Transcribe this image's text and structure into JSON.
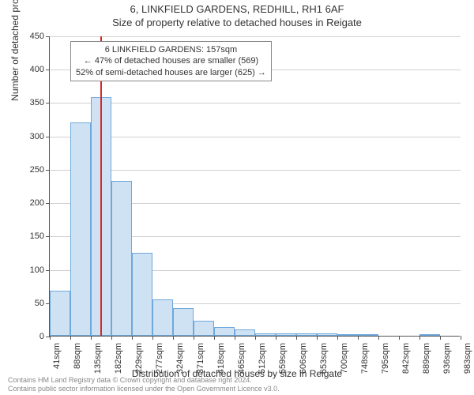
{
  "title": "6, LINKFIELD GARDENS, REDHILL, RH1 6AF",
  "subtitle": "Size of property relative to detached houses in Reigate",
  "y_axis_label": "Number of detached properties",
  "x_axis_label": "Distribution of detached houses by size in Reigate",
  "footer_line1": "Contains HM Land Registry data © Crown copyright and database right 2024.",
  "footer_line2": "Contains public sector information licensed under the Open Government Licence v3.0.",
  "chart": {
    "type": "histogram",
    "background_color": "#ffffff",
    "bar_fill": "#cfe2f3",
    "bar_border": "#6fa8dc",
    "grid_color": "#555555",
    "grid_opacity": 0.28,
    "axis_color": "#555555",
    "ref_line_color": "#d62728",
    "ref_line_x_value": 157,
    "label_fontsize": 12,
    "tick_fontsize": 11,
    "title_fontsize": 13,
    "ylim": [
      0,
      450
    ],
    "ytick_step": 50,
    "x_tick_values": [
      41,
      88,
      135,
      182,
      229,
      277,
      324,
      371,
      418,
      465,
      512,
      559,
      606,
      653,
      700,
      748,
      795,
      842,
      889,
      936,
      983
    ],
    "x_tick_suffix": "sqm",
    "x_bin_width_value": 47,
    "bins": [
      {
        "x_start": 41,
        "count": 67
      },
      {
        "x_start": 88,
        "count": 320
      },
      {
        "x_start": 135,
        "count": 358
      },
      {
        "x_start": 182,
        "count": 232
      },
      {
        "x_start": 229,
        "count": 124
      },
      {
        "x_start": 277,
        "count": 55
      },
      {
        "x_start": 324,
        "count": 42
      },
      {
        "x_start": 371,
        "count": 22
      },
      {
        "x_start": 418,
        "count": 13
      },
      {
        "x_start": 465,
        "count": 10
      },
      {
        "x_start": 512,
        "count": 4
      },
      {
        "x_start": 559,
        "count": 3
      },
      {
        "x_start": 606,
        "count": 3
      },
      {
        "x_start": 653,
        "count": 4
      },
      {
        "x_start": 700,
        "count": 1
      },
      {
        "x_start": 748,
        "count": 1
      },
      {
        "x_start": 795,
        "count": 0
      },
      {
        "x_start": 842,
        "count": 0
      },
      {
        "x_start": 889,
        "count": 1
      },
      {
        "x_start": 936,
        "count": 0
      }
    ]
  },
  "annotation": {
    "line1": "6 LINKFIELD GARDENS: 157sqm",
    "line2": "← 47% of detached houses are smaller (569)",
    "line3": "52% of semi-detached houses are larger (625) →",
    "border_color": "#888888",
    "bg_color": "#ffffff",
    "fontsize": 11
  }
}
